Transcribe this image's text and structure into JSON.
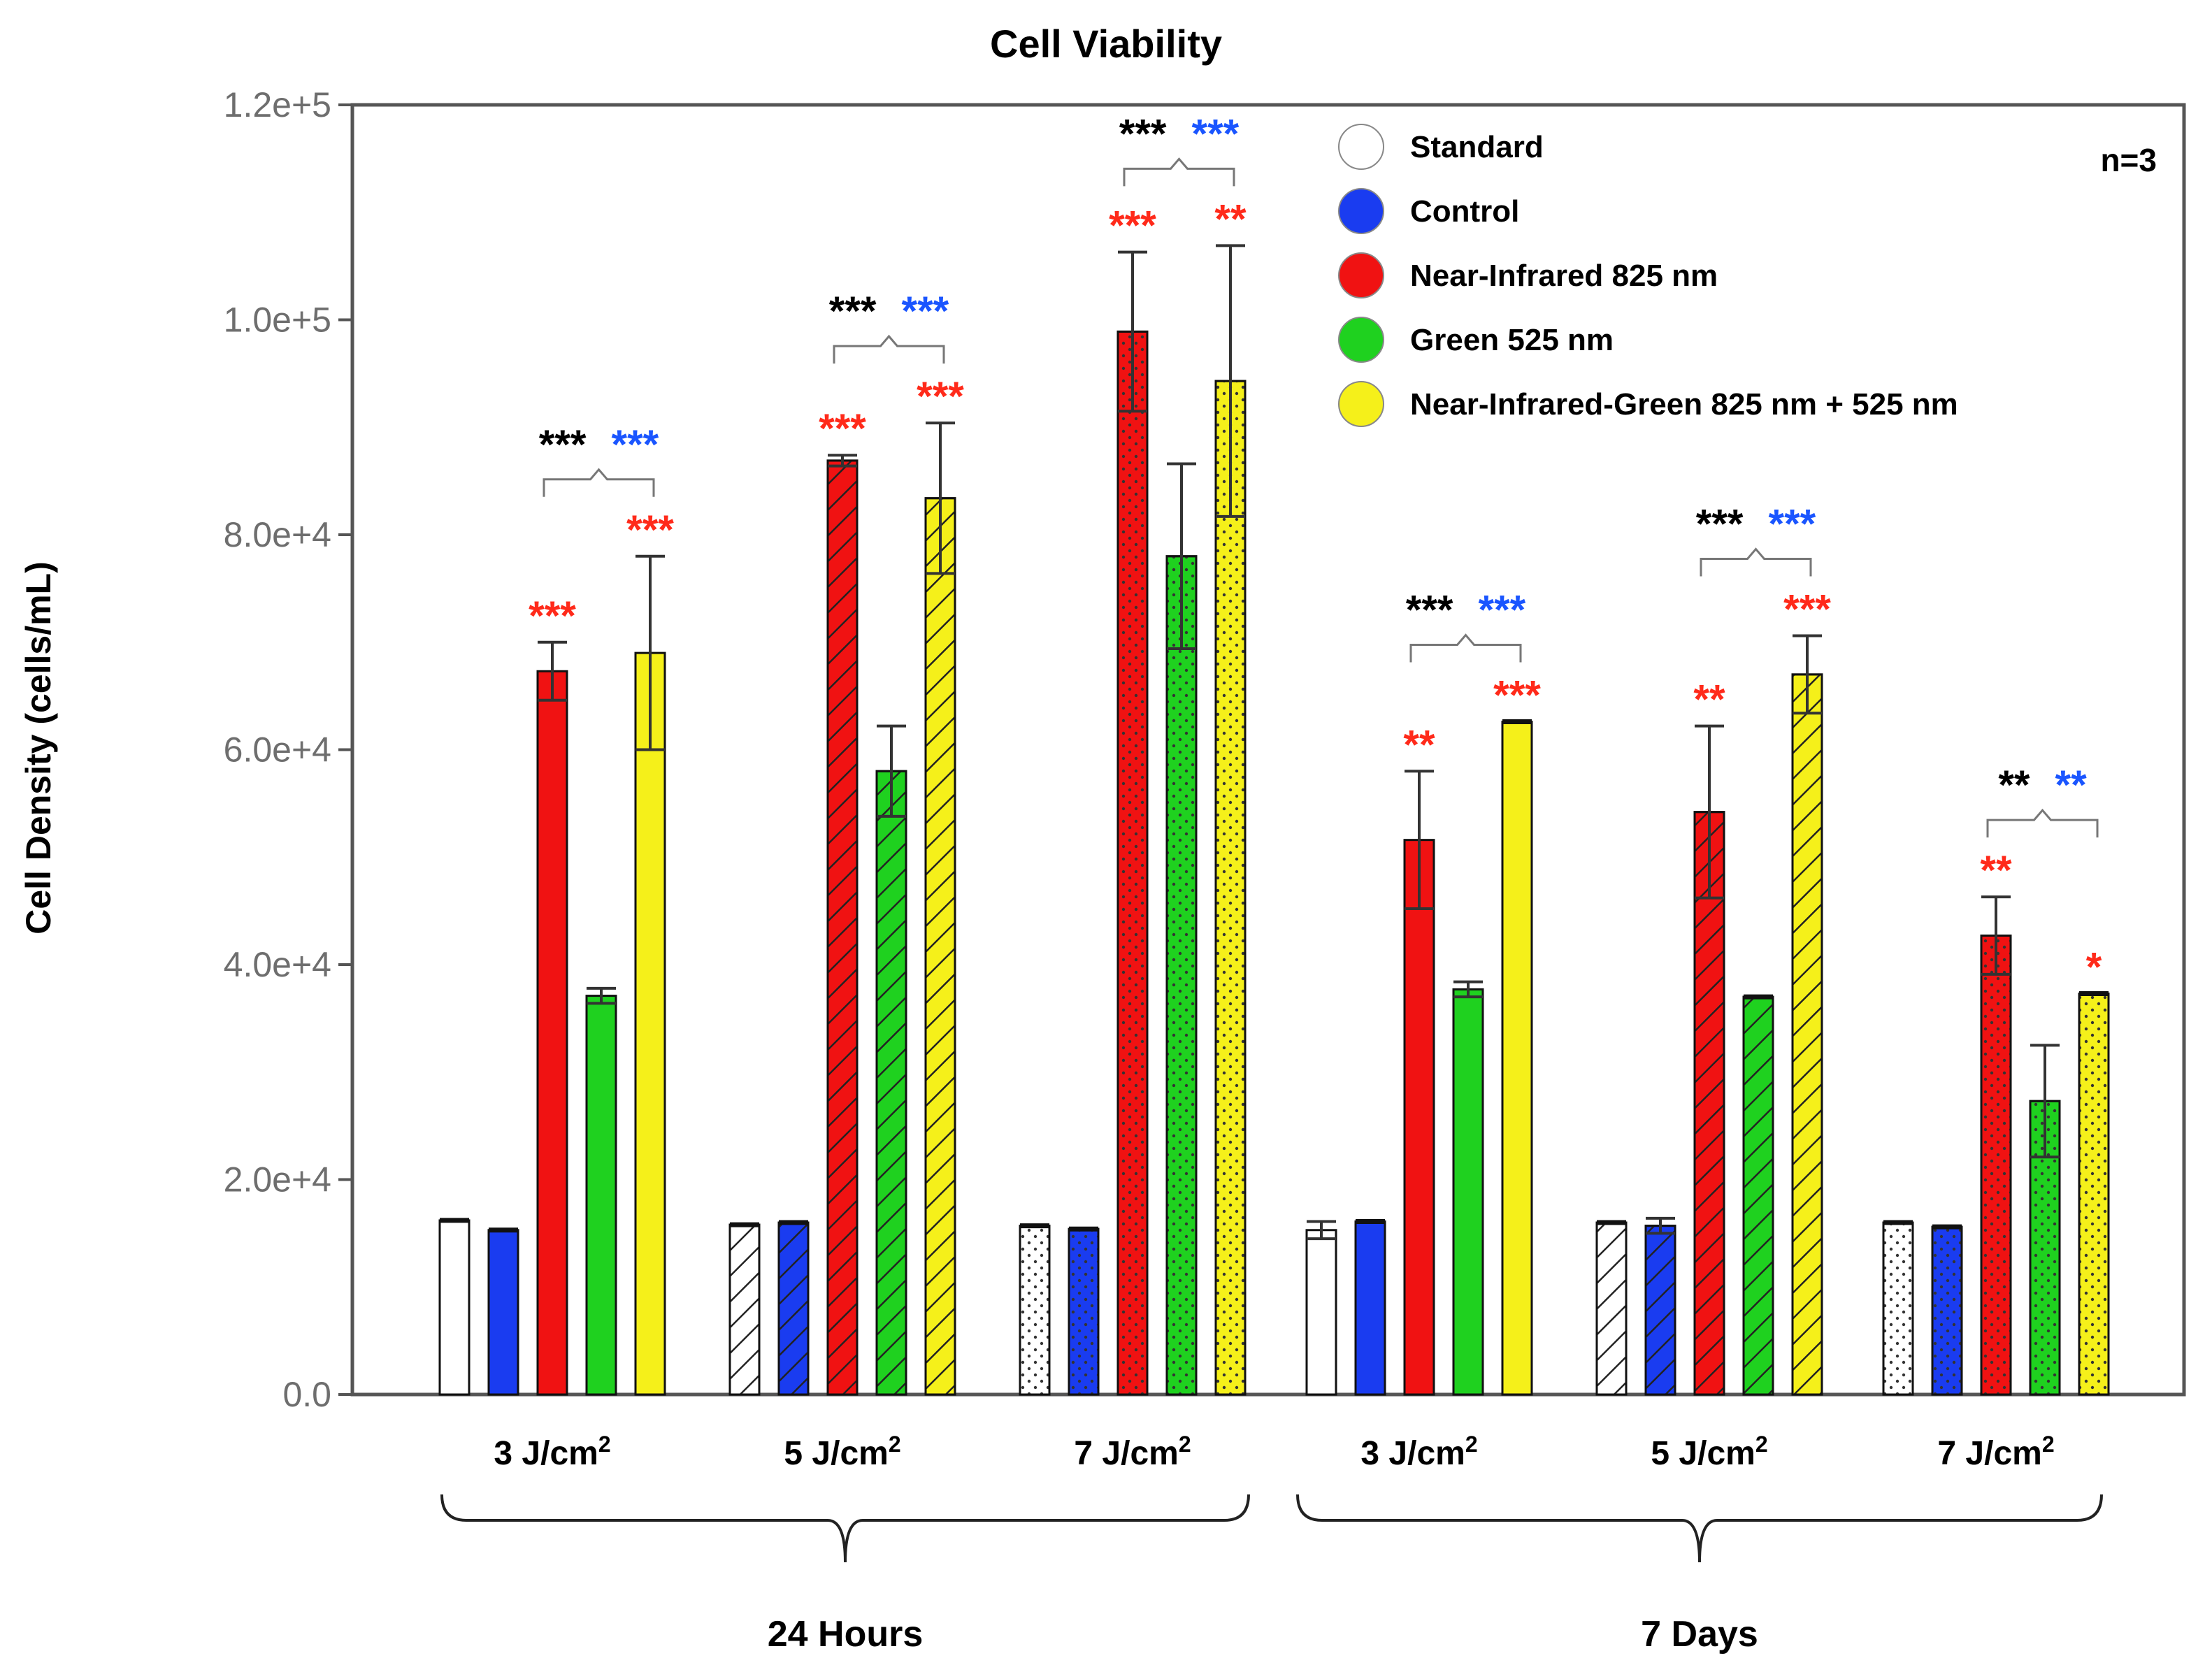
{
  "chart_data": {
    "type": "bar",
    "title": "Cell Viability",
    "xlabel": "",
    "ylabel": "Cell Density (cells/mL)",
    "ylim": [
      0,
      120000
    ],
    "yticks": [
      "0.0",
      "2.0e+4",
      "4.0e+4",
      "6.0e+4",
      "8.0e+4",
      "1.0e+5",
      "1.2e+5"
    ],
    "annotation": "n=3",
    "groups": [
      {
        "label": "24 Hours",
        "categories": [
          0,
          1,
          2
        ]
      },
      {
        "label": "7 Days",
        "categories": [
          3,
          4,
          5
        ]
      }
    ],
    "categories": [
      {
        "main": "3 J/cm",
        "sup": "2"
      },
      {
        "main": "5 J/cm",
        "sup": "2"
      },
      {
        "main": "7 J/cm",
        "sup": "2"
      },
      {
        "main": "3 J/cm",
        "sup": "2"
      },
      {
        "main": "5 J/cm",
        "sup": "2"
      },
      {
        "main": "7 J/cm",
        "sup": "2"
      }
    ],
    "category_patterns": [
      "solid",
      "hatch",
      "dots",
      "solid",
      "hatch",
      "dots"
    ],
    "series": [
      {
        "name": "Standard",
        "color": "#ffffff",
        "values": [
          16200,
          15800,
          15700,
          15300,
          16000,
          16000
        ],
        "errors": [
          0,
          0,
          0,
          800,
          0,
          0
        ]
      },
      {
        "name": "Control",
        "color": "#1a3cf0",
        "values": [
          15300,
          16000,
          15400,
          16100,
          15700,
          15600
        ],
        "errors": [
          0,
          0,
          0,
          0,
          700,
          0
        ]
      },
      {
        "name": "Near-Infrared 825 nm",
        "color": "#f01212",
        "values": [
          67300,
          86900,
          98900,
          51600,
          54200,
          42700
        ],
        "errors": [
          2700,
          500,
          7400,
          6400,
          8000,
          3600
        ]
      },
      {
        "name": "Green 525 nm",
        "color": "#1fd11f",
        "values": [
          37100,
          58000,
          78000,
          37700,
          37000,
          27300
        ],
        "errors": [
          700,
          4200,
          8600,
          700,
          0,
          5200
        ]
      },
      {
        "name": "Near-Infrared-Green 825 nm + 525 nm",
        "color": "#f5f01a",
        "values": [
          69000,
          83400,
          94300,
          62600,
          67000,
          37300
        ],
        "errors": [
          9000,
          7000,
          12600,
          0,
          3600,
          0
        ]
      }
    ],
    "significance": {
      "bars": [
        [
          "",
          "",
          "***",
          "",
          "***"
        ],
        [
          "",
          "",
          "***",
          "",
          "***"
        ],
        [
          "",
          "",
          "***",
          "",
          "**"
        ],
        [
          "",
          "",
          "**",
          "",
          "***"
        ],
        [
          "",
          "",
          "**",
          "",
          "***"
        ],
        [
          "",
          "",
          "**",
          "",
          "*"
        ]
      ],
      "brackets": [
        {
          "left": "***",
          "right": "***"
        },
        {
          "left": "***",
          "right": "***"
        },
        {
          "left": "***",
          "right": "***"
        },
        {
          "left": "***",
          "right": "***"
        },
        {
          "left": "***",
          "right": "***"
        },
        {
          "left": "**",
          "right": "**"
        }
      ],
      "colors": {
        "bar": "#ff2a1a",
        "left": "#000000",
        "right": "#1a55ff"
      }
    },
    "legend_position": "top-right"
  }
}
